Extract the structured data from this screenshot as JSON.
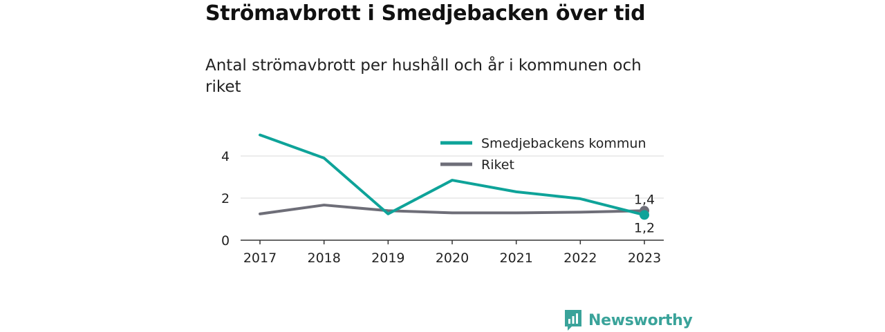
{
  "title": "Strömavbrott i Smedjebacken över tid",
  "subtitle": "Antal strömavbrott per hushåll och år i kommunen och riket",
  "brand": "Newsworthy",
  "colors": {
    "teal": "#0ea399",
    "gray": "#6e6e78",
    "brand": "#3aa39a"
  },
  "chart_data": {
    "type": "line",
    "x": [
      "2017",
      "2018",
      "2019",
      "2020",
      "2021",
      "2022",
      "2023"
    ],
    "ylim": [
      0,
      5
    ],
    "yticks": [
      0,
      2,
      4
    ],
    "ytick_labels": [
      "0",
      "2",
      "4"
    ],
    "grid": true,
    "legend_position": "top-right",
    "series": [
      {
        "name": "Smedjebackens kommun",
        "color": "#0ea399",
        "values": [
          5.0,
          3.9,
          1.25,
          2.85,
          2.3,
          1.97,
          1.2
        ]
      },
      {
        "name": "Riket",
        "color": "#6e6e78",
        "values": [
          1.25,
          1.67,
          1.4,
          1.3,
          1.3,
          1.33,
          1.4
        ]
      }
    ],
    "end_labels": [
      "1,4",
      "1,2"
    ]
  }
}
